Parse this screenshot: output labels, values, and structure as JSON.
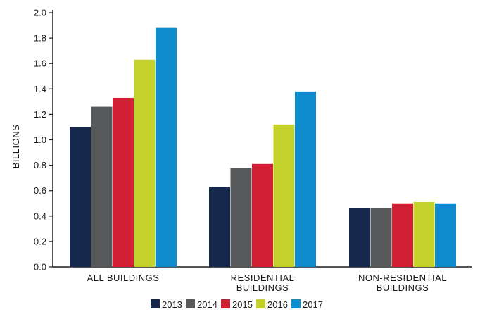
{
  "chart_data": {
    "type": "bar",
    "ylabel": "BILLIONS",
    "ylim": [
      0,
      2.0
    ],
    "yticks": [
      "0.0",
      "0.2",
      "0.4",
      "0.6",
      "0.8",
      "1.0",
      "1.2",
      "1.4",
      "1.6",
      "1.8",
      "2.0"
    ],
    "categories": [
      [
        "ALL BUILDINGS"
      ],
      [
        "RESIDENTIAL",
        "BUILDINGS"
      ],
      [
        "NON-RESIDENTIAL",
        "BUILDINGS"
      ]
    ],
    "series": [
      {
        "name": "2013",
        "color": "#15284b",
        "values": [
          1.1,
          0.63,
          0.46
        ]
      },
      {
        "name": "2014",
        "color": "#58595b",
        "values": [
          1.26,
          0.78,
          0.46
        ]
      },
      {
        "name": "2015",
        "color": "#d12033",
        "values": [
          1.33,
          0.81,
          0.5
        ]
      },
      {
        "name": "2016",
        "color": "#c4d12a",
        "values": [
          1.63,
          1.12,
          0.51
        ]
      },
      {
        "name": "2017",
        "color": "#0f8ccd",
        "values": [
          1.88,
          1.38,
          0.5
        ]
      }
    ],
    "grid": false,
    "legend": "bottom"
  }
}
